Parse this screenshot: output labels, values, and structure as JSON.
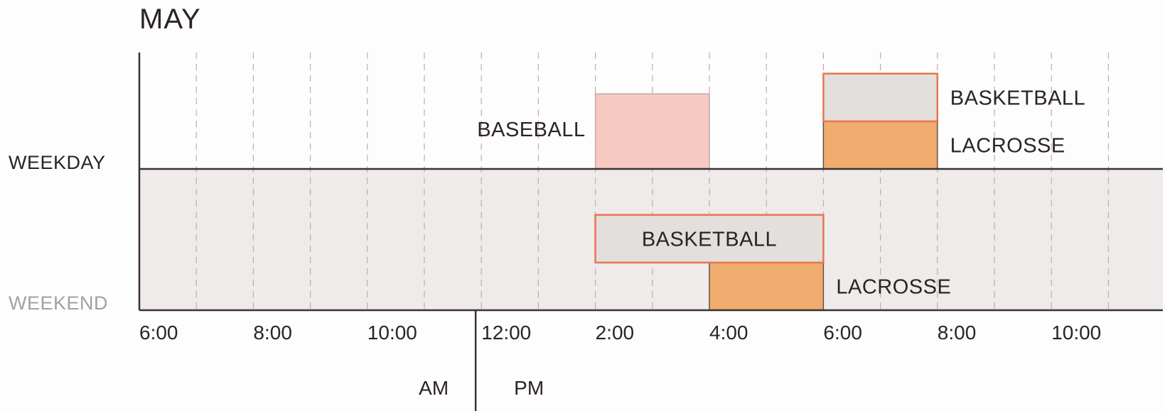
{
  "chart_data": {
    "type": "timeline",
    "title": "MAY",
    "rows": [
      {
        "name": "WEEKDAY",
        "label_color": "#2b2421"
      },
      {
        "name": "WEEKEND",
        "label_color": "#a8a09d"
      }
    ],
    "x_unit": "hour of day (24h)",
    "xlim": [
      6,
      22.8
    ],
    "x_ticks": [
      {
        "hour": 6,
        "label": "6:00"
      },
      {
        "hour": 8,
        "label": "8:00"
      },
      {
        "hour": 10,
        "label": "10:00"
      },
      {
        "hour": 12,
        "label": "12:00"
      },
      {
        "hour": 14,
        "label": "2:00"
      },
      {
        "hour": 16,
        "label": "4:00"
      },
      {
        "hour": 18,
        "label": "6:00"
      },
      {
        "hour": 20,
        "label": "8:00"
      },
      {
        "hour": 22,
        "label": "10:00"
      }
    ],
    "am_pm_divider_hour": 11.9,
    "period_labels": {
      "am": "AM",
      "pm": "PM"
    },
    "events": [
      {
        "row": "WEEKDAY",
        "sport": "BASEBALL",
        "start": 14,
        "end": 16,
        "level": 0,
        "height": 1.45,
        "fill": "#f7c9c3",
        "stroke": "#b9a9a6",
        "label_position": "left"
      },
      {
        "row": "WEEKDAY",
        "sport": "LACROSSE",
        "start": 18,
        "end": 20,
        "level": 0,
        "height": 0.92,
        "fill": "#f0ab6e",
        "stroke": "#5a4a44",
        "label_position": "right"
      },
      {
        "row": "WEEKDAY",
        "sport": "BASKETBALL",
        "start": 18,
        "end": 20,
        "level": 0.92,
        "height": 0.92,
        "fill": "#e2dfdd",
        "stroke": "#e8764f",
        "label_position": "right"
      },
      {
        "row": "WEEKEND",
        "sport": "LACROSSE",
        "start": 16,
        "end": 18,
        "level": 0,
        "height": 0.92,
        "fill": "#f0ab6e",
        "stroke": "#5a4a44",
        "label_position": "right"
      },
      {
        "row": "WEEKEND",
        "sport": "BASKETBALL",
        "start": 14,
        "end": 18,
        "level": 0.92,
        "height": 0.92,
        "fill": "#e2dfdd",
        "stroke": "#e8764f",
        "label_position": "inside"
      }
    ],
    "colors": {
      "weekend_band": "#eeebea",
      "grid_dash": "#c9a9a4",
      "axis": "#3a3230"
    }
  }
}
